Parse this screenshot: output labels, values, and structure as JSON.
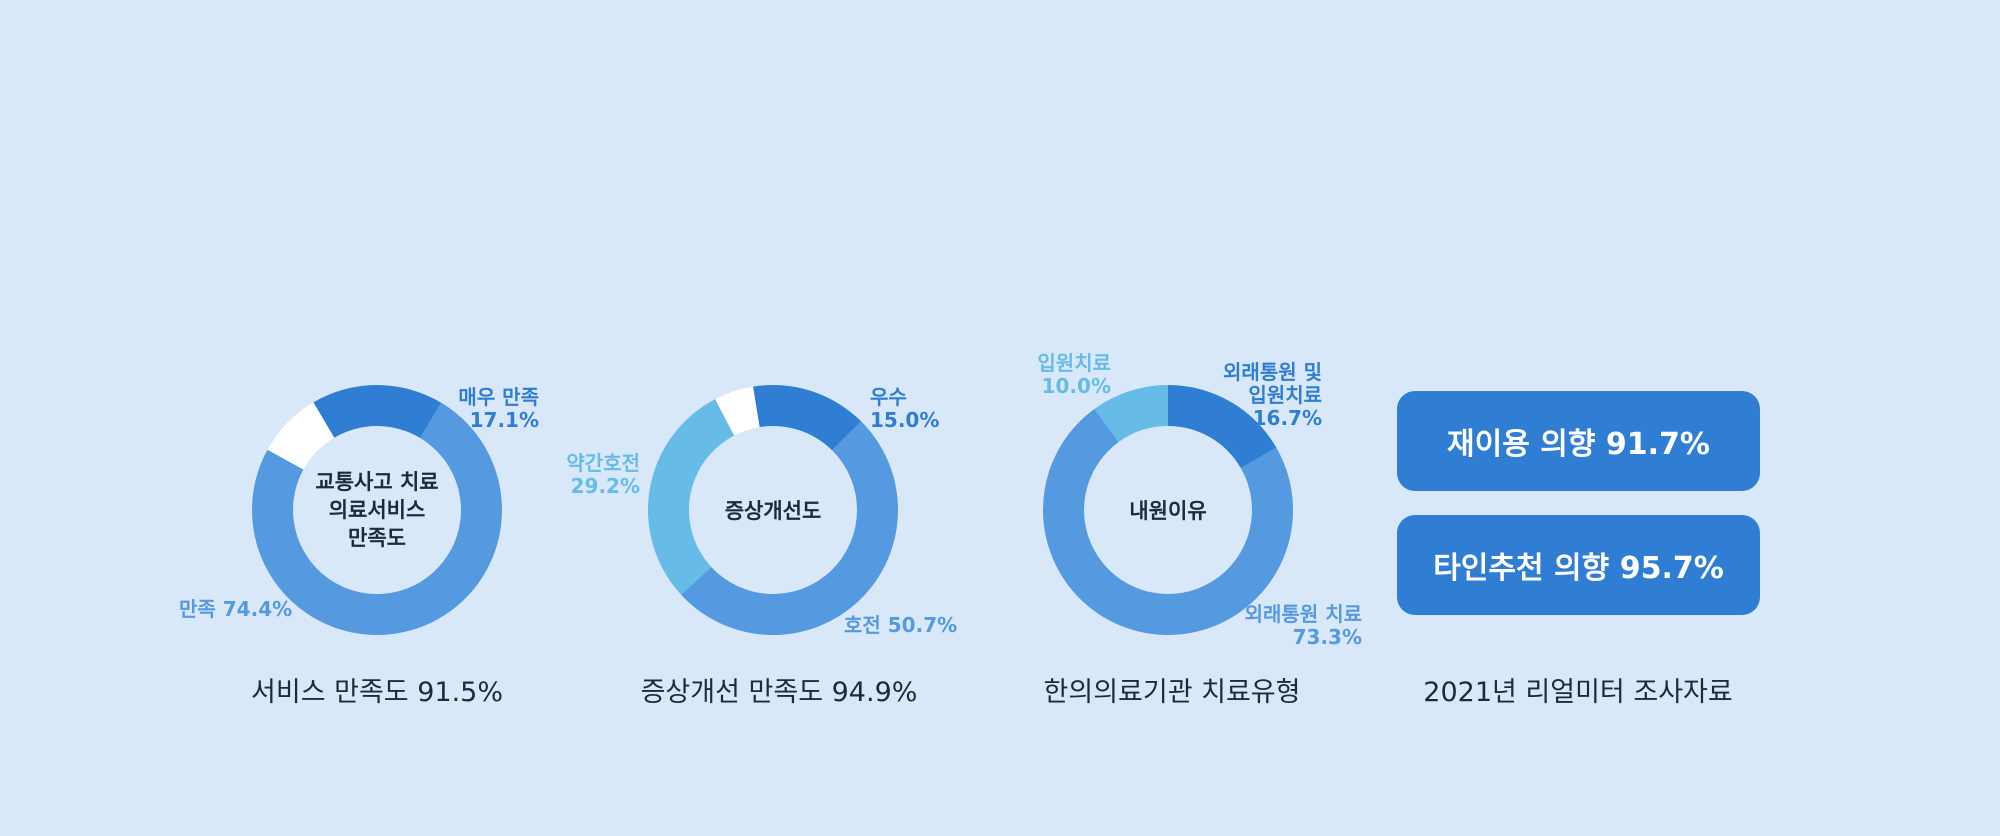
{
  "colors": {
    "background": "#d9e8f8",
    "dark_blue": "#2f7ed4",
    "mid_blue": "#5599e0",
    "light_blue": "#66bce6",
    "white": "#ffffff",
    "text_dark": "#1d2a3a"
  },
  "chart_data": [
    {
      "type": "pie",
      "title": "서비스 만족도 91.5%",
      "center_label": "교통사고 치료 의료서비스 만족도",
      "slices": [
        {
          "label": "매우 만족",
          "value": 17.1,
          "color": "#2f7ed4"
        },
        {
          "label": "만족",
          "value": 74.4,
          "color": "#5599e0"
        },
        {
          "label": "",
          "value": 8.5,
          "color": "#ffffff"
        }
      ]
    },
    {
      "type": "pie",
      "title": "증상개선 만족도 94.9%",
      "center_label": "증상개선도",
      "slices": [
        {
          "label": "우수",
          "value": 15.0,
          "color": "#2f7ed4"
        },
        {
          "label": "호전",
          "value": 50.7,
          "color": "#5599e0"
        },
        {
          "label": "약간호전",
          "value": 29.2,
          "color": "#66bce6"
        },
        {
          "label": "",
          "value": 5.1,
          "color": "#ffffff"
        }
      ]
    },
    {
      "type": "pie",
      "title": "한의의료기관 치료유형",
      "center_label": "내원이유",
      "slices": [
        {
          "label": "외래통원 및 입원치료",
          "value": 16.7,
          "color": "#2f7ed4"
        },
        {
          "label": "외래통원 치료",
          "value": 73.3,
          "color": "#5599e0"
        },
        {
          "label": "입원치료",
          "value": 10.0,
          "color": "#66bce6"
        }
      ]
    }
  ],
  "labels": {
    "c1_very": "매우 만족",
    "c1_very_val": "17.1%",
    "c1_sat": "만족 74.4%",
    "c1_center_1": "교통사고 치료",
    "c1_center_2": "의료서비스",
    "c1_center_3": "만족도",
    "c2_excellent": "우수",
    "c2_excellent_val": "15.0%",
    "c2_improved": "호전 50.7%",
    "c2_slight": "약간호전",
    "c2_slight_val": "29.2%",
    "c2_center": "증상개선도",
    "c3_both_1": "외래통원 및",
    "c3_both_2": "입원치료",
    "c3_both_val": "16.7%",
    "c3_out": "외래통원 치료",
    "c3_out_val": "73.3%",
    "c3_in": "입원치료",
    "c3_in_val": "10.0%",
    "c3_center": "내원이유"
  },
  "captions": {
    "c1": "서비스 만족도 91.5%",
    "c2": "증상개선 만족도 94.9%",
    "c3": "한의의료기관 치료유형",
    "c4": "2021년 리얼미터 조사자료"
  },
  "pills": {
    "reuse": "재이용 의향 91.7%",
    "recommend": "타인추천 의향 95.7%"
  }
}
